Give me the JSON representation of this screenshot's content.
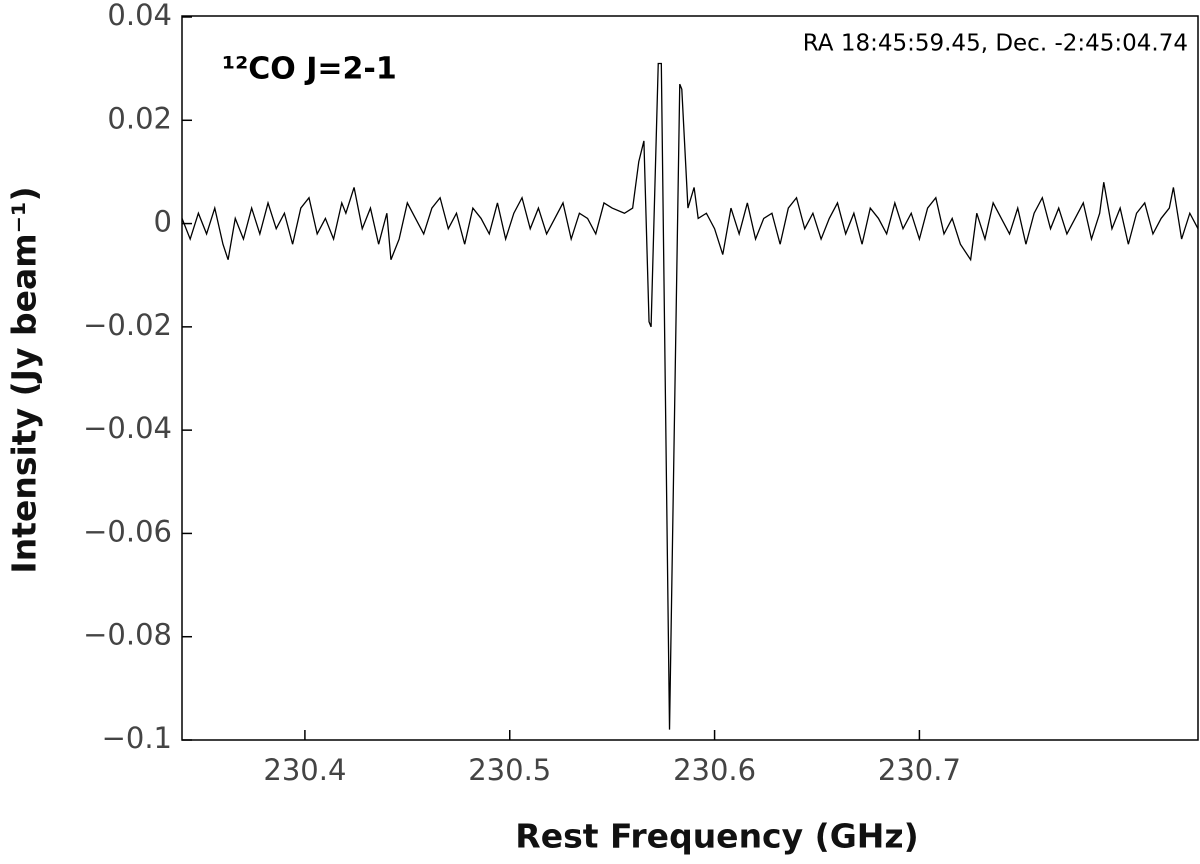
{
  "chart_data": {
    "type": "line",
    "xlabel": "Rest Frequency (GHz)",
    "ylabel": "Intensity (Jy beam⁻¹)",
    "annotations": [
      "¹²CO J=2-1",
      "RA 18:45:59.45, Dec. -2:45:04.74"
    ],
    "xlim": [
      230.34,
      230.836
    ],
    "ylim": [
      -0.1,
      0.04
    ],
    "xticks": [
      230.4,
      230.5,
      230.6,
      230.7
    ],
    "yticks": [
      0.04,
      0.02,
      0,
      {
        "value": -0.02,
        "label": "−0.02"
      },
      {
        "value": -0.04,
        "label": "−0.04"
      },
      {
        "value": -0.06,
        "label": "−0.06"
      },
      {
        "value": -0.08,
        "label": "−0.08"
      },
      {
        "value": -0.1,
        "label": "−0.1"
      }
    ],
    "series": [
      {
        "color": "#000000",
        "x": [
          230.34,
          230.344,
          230.348,
          230.352,
          230.356,
          230.36,
          230.3625,
          230.366,
          230.37,
          230.374,
          230.378,
          230.382,
          230.386,
          230.39,
          230.394,
          230.398,
          230.402,
          230.406,
          230.41,
          230.414,
          230.418,
          230.42,
          230.424,
          230.428,
          230.432,
          230.436,
          230.44,
          230.442,
          230.446,
          230.45,
          230.454,
          230.458,
          230.462,
          230.466,
          230.47,
          230.474,
          230.478,
          230.482,
          230.486,
          230.49,
          230.494,
          230.498,
          230.502,
          230.506,
          230.51,
          230.514,
          230.518,
          230.522,
          230.526,
          230.53,
          230.534,
          230.538,
          230.542,
          230.546,
          230.55,
          230.556,
          230.56,
          230.563,
          230.5655,
          230.568,
          230.569,
          230.5725,
          230.574,
          230.578,
          230.583,
          230.584,
          230.587,
          230.59,
          230.592,
          230.596,
          230.6,
          230.604,
          230.608,
          230.612,
          230.616,
          230.62,
          230.624,
          230.628,
          230.632,
          230.636,
          230.64,
          230.644,
          230.648,
          230.652,
          230.656,
          230.66,
          230.664,
          230.668,
          230.672,
          230.676,
          230.68,
          230.684,
          230.688,
          230.692,
          230.696,
          230.7,
          230.704,
          230.708,
          230.712,
          230.716,
          230.72,
          230.725,
          230.728,
          230.732,
          230.736,
          230.74,
          230.744,
          230.748,
          230.752,
          230.756,
          230.76,
          230.764,
          230.768,
          230.772,
          230.776,
          230.78,
          230.784,
          230.788,
          230.79,
          230.794,
          230.798,
          230.802,
          230.806,
          230.81,
          230.814,
          230.818,
          230.822,
          230.824,
          230.828,
          230.832,
          230.836
        ],
        "values": [
          0.001,
          -0.003,
          0.002,
          -0.002,
          0.003,
          -0.004,
          -0.007,
          0.001,
          -0.003,
          0.003,
          -0.002,
          0.004,
          -0.001,
          0.002,
          -0.004,
          0.003,
          0.005,
          -0.002,
          0.001,
          -0.003,
          0.004,
          0.002,
          0.007,
          -0.001,
          0.003,
          -0.004,
          0.002,
          -0.007,
          -0.003,
          0.004,
          0.001,
          -0.002,
          0.003,
          0.005,
          -0.001,
          0.002,
          -0.004,
          0.003,
          0.001,
          -0.002,
          0.004,
          -0.003,
          0.002,
          0.005,
          -0.001,
          0.003,
          -0.002,
          0.001,
          0.004,
          -0.003,
          0.002,
          0.001,
          -0.002,
          0.004,
          0.003,
          0.002,
          0.003,
          0.012,
          0.016,
          -0.019,
          -0.02,
          0.031,
          0.031,
          -0.098,
          0.027,
          0.026,
          0.003,
          0.007,
          0.001,
          0.002,
          -0.001,
          -0.006,
          0.003,
          -0.002,
          0.004,
          -0.003,
          0.001,
          0.002,
          -0.004,
          0.003,
          0.005,
          -0.001,
          0.002,
          -0.003,
          0.001,
          0.004,
          -0.002,
          0.002,
          -0.004,
          0.003,
          0.001,
          -0.002,
          0.004,
          -0.001,
          0.002,
          -0.003,
          0.003,
          0.005,
          -0.002,
          0.001,
          -0.004,
          -0.007,
          0.002,
          -0.003,
          0.004,
          0.001,
          -0.002,
          0.003,
          -0.004,
          0.002,
          0.005,
          -0.001,
          0.003,
          -0.002,
          0.001,
          0.004,
          -0.003,
          0.002,
          0.008,
          -0.001,
          0.003,
          -0.004,
          0.002,
          0.004,
          -0.002,
          0.001,
          0.003,
          0.007,
          -0.003,
          0.002,
          -0.001
        ]
      }
    ]
  }
}
